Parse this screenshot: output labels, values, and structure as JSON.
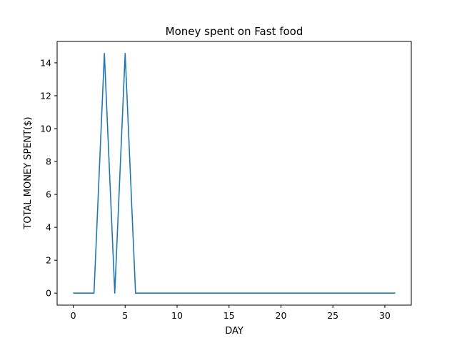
{
  "chart_data": {
    "type": "line",
    "title": "Money spent on Fast food",
    "xlabel": "DAY",
    "ylabel": "TOTAL MONEY SPENT($)",
    "xlim": [
      -1.55,
      32.55
    ],
    "ylim": [
      -0.73,
      15.3
    ],
    "xticks": [
      0,
      5,
      10,
      15,
      20,
      25,
      30
    ],
    "yticks": [
      0,
      2,
      4,
      6,
      8,
      10,
      12,
      14
    ],
    "grid": false,
    "series": [
      {
        "color": "#1f77b4",
        "x": [
          0,
          1,
          2,
          3,
          4,
          5,
          6,
          7,
          8,
          9,
          10,
          11,
          12,
          13,
          14,
          15,
          16,
          17,
          18,
          19,
          20,
          21,
          22,
          23,
          24,
          25,
          26,
          27,
          28,
          29,
          30,
          31
        ],
        "values": [
          0,
          0,
          0,
          14.57,
          0,
          14.57,
          0,
          0,
          0,
          0,
          0,
          0,
          0,
          0,
          0,
          0,
          0,
          0,
          0,
          0,
          0,
          0,
          0,
          0,
          0,
          0,
          0,
          0,
          0,
          0,
          0,
          0
        ]
      }
    ]
  }
}
